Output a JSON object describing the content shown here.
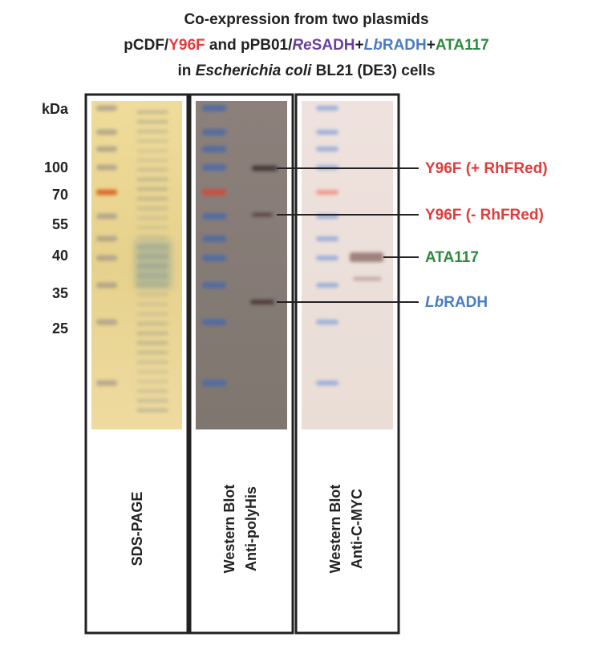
{
  "title": {
    "line1": "Co-expression from two plasmids",
    "line2": [
      "pCDF/",
      "Y96F",
      " and pPB01/",
      "Re",
      "SADH",
      "+",
      "Lb",
      "RADH",
      "+",
      "ATA117"
    ],
    "line3": [
      "in ",
      "Escherichia coli",
      " BL21 (DE3) cells"
    ]
  },
  "markers": {
    "unit": "kDa",
    "labels": [
      "100",
      "70",
      "55",
      "40",
      "35",
      "25"
    ]
  },
  "bands": [
    "Y96F (+ RhFRed)",
    "Y96F (- RhFRed)",
    "ATA117",
    [
      "Lb",
      "RADH"
    ]
  ],
  "panels": [
    [
      "SDS-PAGE"
    ],
    [
      "Western Blot",
      "Anti-polyHis"
    ],
    [
      "Western Blot",
      "Anti-C-MYC"
    ]
  ]
}
